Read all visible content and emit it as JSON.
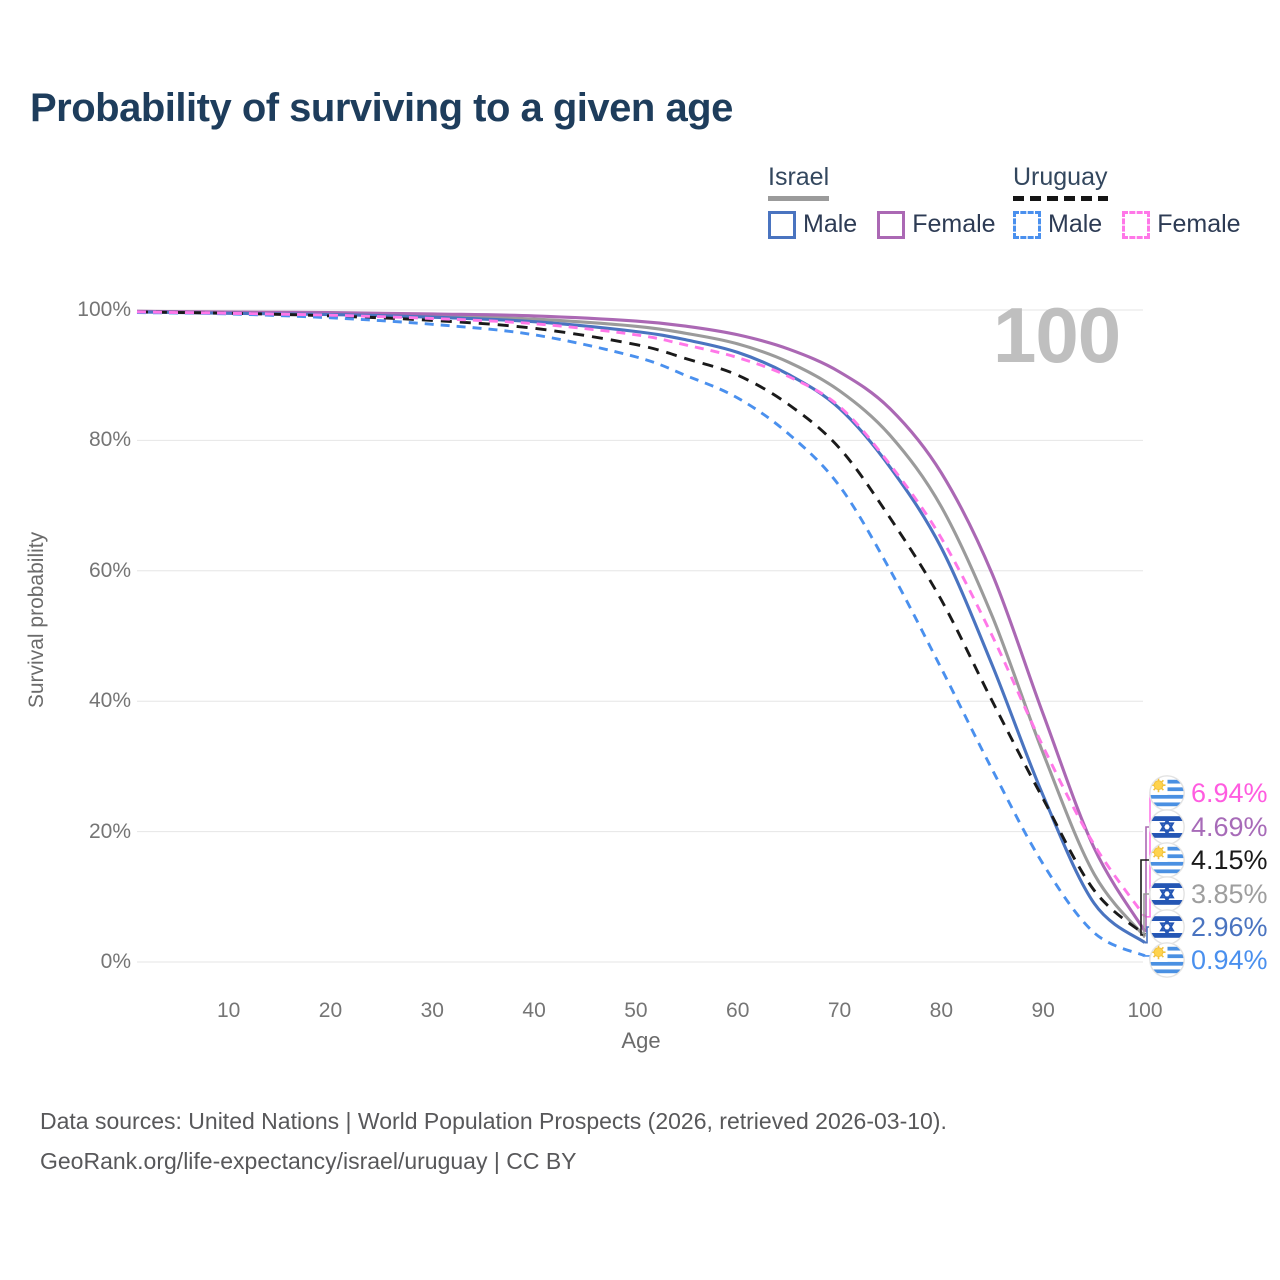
{
  "title": "Probability of surviving to a given age",
  "watermark_age": "100",
  "legend": {
    "groups": [
      {
        "country": "Israel",
        "underline_style": "solid",
        "items": [
          {
            "label": "Male",
            "color": "#4a74c0",
            "dashed": false
          },
          {
            "label": "Female",
            "color": "#ab68b4",
            "dashed": false
          }
        ]
      },
      {
        "country": "Uruguay",
        "underline_style": "dashed",
        "items": [
          {
            "label": "Male",
            "color": "#4a90ee",
            "dashed": true
          },
          {
            "label": "Female",
            "color": "#ff77e8",
            "dashed": true
          }
        ]
      }
    ]
  },
  "axes": {
    "y_title": "Survival probability",
    "x_title": "Age",
    "y_ticks": [
      "100%",
      "80%",
      "60%",
      "40%",
      "20%",
      "0%"
    ],
    "x_ticks": [
      "10",
      "20",
      "30",
      "40",
      "50",
      "60",
      "70",
      "80",
      "90",
      "100"
    ]
  },
  "chart_data": {
    "type": "line",
    "title": "Probability of surviving to a given age",
    "xlabel": "Age",
    "ylabel": "Survival probability",
    "xlim": [
      1,
      100
    ],
    "ylim": [
      0,
      100
    ],
    "grid": "horizontal",
    "x": [
      1,
      10,
      20,
      30,
      40,
      50,
      55,
      60,
      65,
      70,
      75,
      80,
      85,
      90,
      95,
      100
    ],
    "series": [
      {
        "name": "Israel",
        "sex": "both",
        "color": "#9b9b9b",
        "label_color": "#9e9e9e",
        "dashed": false,
        "flag": "israel",
        "end_label": "3.85%",
        "values": [
          99.8,
          99.6,
          99.4,
          99.1,
          98.6,
          97.5,
          96.4,
          94.8,
          92.0,
          87.6,
          80.7,
          69.8,
          53.0,
          32.0,
          13.5,
          3.85
        ]
      },
      {
        "name": "Israel Female",
        "sex": "female",
        "color": "#ab68b4",
        "label_color": "#a76bb8",
        "dashed": false,
        "flag": "israel",
        "end_label": "4.69%",
        "values": [
          99.8,
          99.7,
          99.6,
          99.4,
          99.1,
          98.3,
          97.5,
          96.2,
          94.0,
          90.5,
          84.8,
          75.0,
          59.5,
          38.0,
          17.5,
          4.69
        ]
      },
      {
        "name": "Israel Male",
        "sex": "male",
        "color": "#4a74c0",
        "label_color": "#4a74c0",
        "dashed": false,
        "flag": "israel",
        "end_label": "2.96%",
        "values": [
          99.7,
          99.5,
          99.3,
          98.9,
          98.2,
          96.7,
          95.4,
          93.5,
          90.1,
          84.9,
          75.8,
          63.5,
          45.5,
          25.5,
          9.0,
          2.96
        ]
      },
      {
        "name": "Uruguay",
        "sex": "both",
        "color": "#1a1a1a",
        "label_color": "#1a1a1a",
        "dashed": true,
        "flag": "uruguay",
        "end_label": "4.15%",
        "values": [
          99.7,
          99.5,
          99.1,
          98.4,
          97.2,
          94.7,
          92.5,
          90.0,
          85.5,
          78.8,
          68.0,
          55.5,
          40.0,
          25.0,
          11.0,
          4.15
        ]
      },
      {
        "name": "Uruguay Male",
        "sex": "male",
        "color": "#4a90ee",
        "label_color": "#4a90ee",
        "dashed": true,
        "flag": "uruguay",
        "end_label": "0.94%",
        "values": [
          99.6,
          99.4,
          98.8,
          97.8,
          96.2,
          92.8,
          89.9,
          86.5,
          81.0,
          73.0,
          60.0,
          45.0,
          29.5,
          15.0,
          4.5,
          0.94
        ]
      },
      {
        "name": "Uruguay Female",
        "sex": "female",
        "color": "#ff77e8",
        "label_color": "#ff5ce0",
        "dashed": true,
        "flag": "uruguay",
        "end_label": "6.94%",
        "values": [
          99.7,
          99.5,
          99.2,
          98.7,
          97.9,
          96.2,
          94.6,
          92.7,
          89.8,
          85.2,
          76.2,
          65.0,
          50.0,
          33.0,
          18.0,
          6.94
        ]
      }
    ]
  },
  "footer": {
    "line1": "Data sources: United Nations | World Population Prospects (2026, retrieved 2026-03-10).",
    "line2": "GeoRank.org/life-expectancy/israel/uruguay | CC BY"
  }
}
